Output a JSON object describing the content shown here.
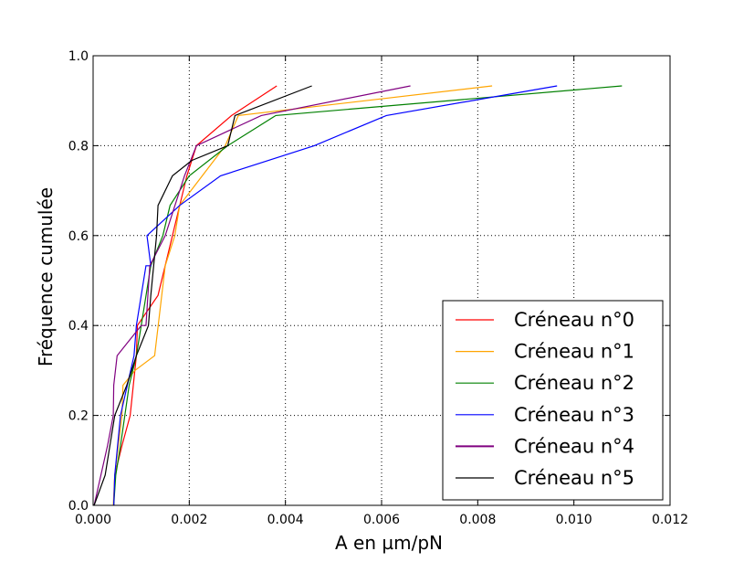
{
  "chart_data": {
    "type": "line",
    "title": "",
    "xlabel": "A en µm/pN",
    "ylabel": "Fréquence cumulée",
    "xlim": [
      0.0,
      0.012
    ],
    "ylim": [
      0.0,
      1.0
    ],
    "x_ticks": [
      "0.000",
      "0.002",
      "0.004",
      "0.006",
      "0.008",
      "0.010",
      "0.012"
    ],
    "y_ticks": [
      "0.0",
      "0.2",
      "0.4",
      "0.6",
      "0.8",
      "1.0"
    ],
    "grid": true,
    "legend_position": "lower right",
    "series": [
      {
        "name": "Créneau n°0",
        "color": "#ff0000",
        "points": [
          [
            0.00043,
            0.0
          ],
          [
            0.00045,
            0.067
          ],
          [
            0.0006,
            0.133
          ],
          [
            0.00077,
            0.2
          ],
          [
            0.0009,
            0.333
          ],
          [
            0.00092,
            0.4
          ],
          [
            0.00135,
            0.467
          ],
          [
            0.00165,
            0.6
          ],
          [
            0.00195,
            0.733
          ],
          [
            0.00215,
            0.8
          ],
          [
            0.00288,
            0.867
          ],
          [
            0.00382,
            0.933
          ]
        ]
      },
      {
        "name": "Créneau n°1",
        "color": "#ffa500",
        "points": [
          [
            0.00042,
            0.0
          ],
          [
            0.00045,
            0.067
          ],
          [
            0.0006,
            0.2
          ],
          [
            0.00062,
            0.267
          ],
          [
            0.00087,
            0.3
          ],
          [
            0.00128,
            0.333
          ],
          [
            0.0015,
            0.533
          ],
          [
            0.0017,
            0.6
          ],
          [
            0.0018,
            0.667
          ],
          [
            0.00275,
            0.8
          ],
          [
            0.00302,
            0.867
          ],
          [
            0.0083,
            0.933
          ]
        ]
      },
      {
        "name": "Créneau n°2",
        "color": "#008000",
        "points": [
          [
            0.00043,
            0.0
          ],
          [
            0.00047,
            0.067
          ],
          [
            0.00057,
            0.133
          ],
          [
            0.00075,
            0.267
          ],
          [
            0.0009,
            0.333
          ],
          [
            0.0012,
            0.533
          ],
          [
            0.00145,
            0.6
          ],
          [
            0.0016,
            0.667
          ],
          [
            0.002,
            0.733
          ],
          [
            0.0028,
            0.8
          ],
          [
            0.0038,
            0.867
          ],
          [
            0.011,
            0.933
          ]
        ]
      },
      {
        "name": "Créneau n°3",
        "color": "#0000ff",
        "points": [
          [
            0.00043,
            0.0
          ],
          [
            0.00045,
            0.067
          ],
          [
            0.00057,
            0.2
          ],
          [
            0.00085,
            0.333
          ],
          [
            0.0009,
            0.4
          ],
          [
            0.0011,
            0.533
          ],
          [
            0.0012,
            0.533
          ],
          [
            0.00112,
            0.6
          ],
          [
            0.0018,
            0.667
          ],
          [
            0.00265,
            0.733
          ],
          [
            0.0046,
            0.8
          ],
          [
            0.0061,
            0.867
          ],
          [
            0.00965,
            0.933
          ]
        ]
      },
      {
        "name": "Créneau n°4",
        "color": "#800080",
        "points": [
          [
            2e-05,
            0.0
          ],
          [
            0.0003,
            0.133
          ],
          [
            0.00042,
            0.2
          ],
          [
            0.00043,
            0.267
          ],
          [
            0.0005,
            0.333
          ],
          [
            0.001,
            0.4
          ],
          [
            0.0011,
            0.4
          ],
          [
            0.00118,
            0.533
          ],
          [
            0.0015,
            0.6
          ],
          [
            0.0019,
            0.733
          ],
          [
            0.00215,
            0.8
          ],
          [
            0.0035,
            0.867
          ],
          [
            0.0066,
            0.933
          ]
        ]
      },
      {
        "name": "Créneau n°5",
        "color": "#000000",
        "points": [
          [
            2e-05,
            0.0
          ],
          [
            0.00025,
            0.067
          ],
          [
            0.00045,
            0.2
          ],
          [
            0.0007,
            0.267
          ],
          [
            0.0009,
            0.333
          ],
          [
            0.00115,
            0.4
          ],
          [
            0.0012,
            0.467
          ],
          [
            0.00132,
            0.6
          ],
          [
            0.00135,
            0.667
          ],
          [
            0.00165,
            0.733
          ],
          [
            0.00205,
            0.767
          ],
          [
            0.0028,
            0.8
          ],
          [
            0.00295,
            0.867
          ],
          [
            0.00455,
            0.933
          ]
        ]
      }
    ]
  }
}
